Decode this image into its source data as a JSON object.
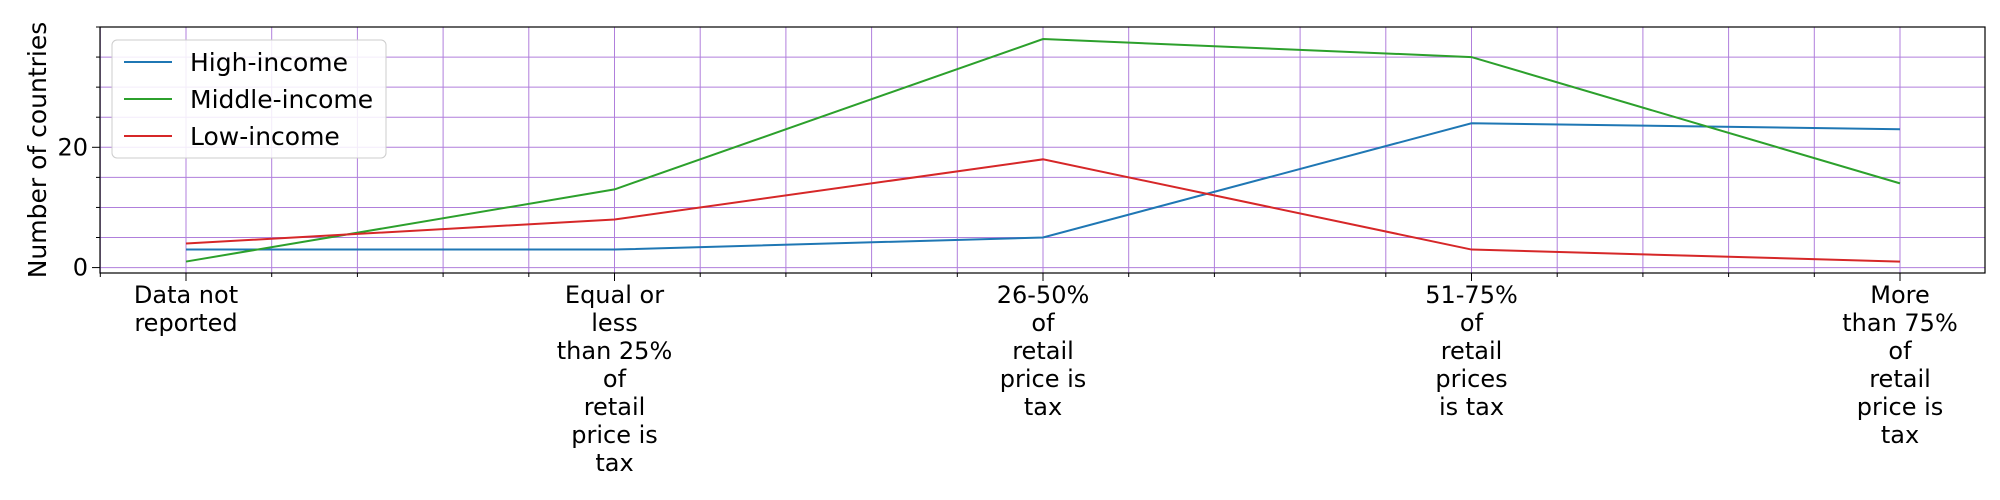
{
  "chart_data": {
    "type": "line",
    "title": "",
    "xlabel": "",
    "ylabel": "Number of countries",
    "categories": [
      [
        "Data not",
        "reported"
      ],
      [
        "Equal or",
        "less",
        "than 25%",
        "of",
        "retail",
        "price is",
        "tax"
      ],
      [
        "26-50%",
        "of",
        "retail",
        "price is",
        "tax"
      ],
      [
        "51-75%",
        "of",
        "retail",
        "prices",
        "is tax"
      ],
      [
        "More",
        "than 75%",
        "of",
        "retail",
        "price is",
        "tax"
      ]
    ],
    "series": [
      {
        "name": "High-income",
        "color": "#1f77b4",
        "values": [
          3,
          3,
          5,
          24,
          23
        ]
      },
      {
        "name": "Middle-income",
        "color": "#2ca02c",
        "values": [
          1,
          13,
          38,
          35,
          14
        ]
      },
      {
        "name": "Low-income",
        "color": "#d62728",
        "values": [
          4,
          8,
          18,
          3,
          1
        ]
      }
    ],
    "ylim": [
      -0.9,
      40
    ],
    "y_major_ticks": [
      0,
      20
    ],
    "y_grid_step": 5,
    "x_minor_per_interval": 4,
    "grid": true,
    "grid_color": "#b07fdc",
    "legend_position": "upper-left"
  }
}
